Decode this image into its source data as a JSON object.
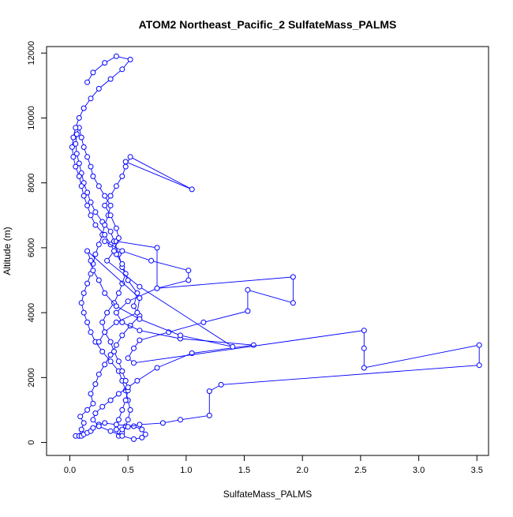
{
  "chart_data": {
    "type": "line",
    "title": "ATOM2 Northeast_Pacific_2 SulfateMass_PALMS",
    "xlabel": "SulfateMass_PALMS",
    "ylabel": "Altitude (m)",
    "xlim": [
      -0.2,
      3.6
    ],
    "ylim": [
      -400,
      12200
    ],
    "x_ticks": [
      {
        "value": 0.0,
        "label": "0.0"
      },
      {
        "value": 0.5,
        "label": "0.5"
      },
      {
        "value": 1.0,
        "label": "1.0"
      },
      {
        "value": 1.5,
        "label": "1.5"
      },
      {
        "value": 2.0,
        "label": "2.0"
      },
      {
        "value": 2.5,
        "label": "2.5"
      },
      {
        "value": 3.0,
        "label": "3.0"
      },
      {
        "value": 3.5,
        "label": "3.5"
      }
    ],
    "y_ticks": [
      {
        "value": 0,
        "label": "0"
      },
      {
        "value": 2000,
        "label": "2000"
      },
      {
        "value": 4000,
        "label": "4000"
      },
      {
        "value": 6000,
        "label": "6000"
      },
      {
        "value": 8000,
        "label": "8000"
      },
      {
        "value": 10000,
        "label": "10000"
      },
      {
        "value": 12000,
        "label": "12000"
      }
    ],
    "grid": false,
    "legend": "none",
    "color": "#0000ff",
    "series": [
      {
        "x": [
          0.08,
          0.1,
          0.12,
          0.09,
          0.15,
          0.2,
          0.18,
          0.22,
          0.25,
          0.3,
          0.35,
          0.4,
          0.45,
          0.52,
          0.6,
          0.55,
          0.58,
          0.5,
          0.45,
          0.42,
          0.38,
          0.35,
          0.28,
          0.22,
          0.18,
          0.15,
          0.12,
          0.1,
          0.08,
          0.06,
          0.05,
          0.06,
          0.08,
          0.1,
          0.12,
          0.15,
          0.18,
          0.2,
          0.25,
          0.3,
          0.35,
          0.33,
          0.3,
          0.28,
          0.25,
          0.22,
          0.2,
          0.18,
          0.15,
          0.12,
          0.1,
          0.12,
          0.15,
          0.18,
          0.22,
          0.28,
          0.35,
          0.42,
          0.45,
          0.48,
          0.5,
          0.52,
          0.5,
          0.48,
          0.45,
          0.42,
          0.4,
          0.42,
          0.45,
          0.48,
          0.5,
          0.48,
          0.45,
          0.42,
          0.38,
          0.35,
          0.3,
          0.28,
          0.32,
          0.38,
          0.42,
          0.45,
          0.48,
          0.45,
          0.4,
          0.35,
          0.3,
          0.22,
          0.18,
          0.15,
          0.12,
          0.1,
          0.08,
          0.05,
          0.03,
          0.02,
          0.03,
          0.05,
          0.08,
          0.12,
          0.18,
          0.25,
          0.35,
          0.45,
          0.52,
          0.4,
          0.3,
          0.2,
          0.15
        ],
        "y": [
          200,
          400,
          600,
          800,
          1000,
          1200,
          1500,
          1800,
          2100,
          2400,
          2700,
          3000,
          3300,
          3600,
          3900,
          4200,
          4600,
          5000,
          5400,
          5800,
          6200,
          6500,
          6800,
          7100,
          7400,
          7700,
          8000,
          8300,
          8600,
          8900,
          9200,
          9500,
          9700,
          9400,
          9100,
          8800,
          8500,
          8200,
          7900,
          7600,
          7300,
          7000,
          6700,
          6400,
          6100,
          5800,
          5500,
          5200,
          4900,
          4600,
          4300,
          4000,
          3700,
          3400,
          3100,
          2800,
          2500,
          2200,
          1900,
          1600,
          1300,
          1000,
          700,
          500,
          300,
          200,
          400,
          700,
          1000,
          1300,
          1600,
          1900,
          2200,
          2500,
          2800,
          3100,
          3400,
          3700,
          4000,
          4300,
          4600,
          4900,
          5200,
          5500,
          5800,
          6100,
          6400,
          6700,
          7000,
          7300,
          7600,
          7900,
          8200,
          8500,
          8800,
          9100,
          9400,
          9700,
          10000,
          10300,
          10600,
          10900,
          11200,
          11500,
          11800,
          11900,
          11700,
          11400,
          11100
        ]
      },
      {
        "x": [
          0.05,
          0.08,
          0.1,
          0.12,
          0.15,
          0.18,
          0.2,
          0.25,
          0.3,
          0.4,
          0.55,
          0.62,
          0.65,
          0.62,
          0.55,
          0.45,
          0.35,
          0.25,
          0.2,
          0.22,
          0.28,
          0.35,
          0.42,
          0.5,
          0.58,
          0.75,
          1.05,
          1.58,
          0.95,
          0.6,
          0.45,
          0.4,
          0.5,
          0.75,
          1.02,
          1.02,
          0.7,
          0.45,
          0.3
        ],
        "y": [
          200,
          200,
          200,
          250,
          300,
          350,
          450,
          550,
          600,
          550,
          500,
          400,
          250,
          150,
          100,
          200,
          350,
          500,
          700,
          900,
          1100,
          1300,
          1500,
          1700,
          1900,
          2300,
          2750,
          3000,
          3200,
          3450,
          3700,
          4000,
          4350,
          4750,
          5000,
          5300,
          5600,
          5900,
          6200
        ]
      },
      {
        "x": [
          0.4,
          0.75,
          0.75,
          1.92,
          1.92,
          1.53,
          1.53,
          1.15,
          0.85,
          0.6,
          0.55,
          0.5,
          0.55,
          2.53,
          2.53,
          2.53,
          3.52,
          3.52,
          1.3,
          1.2,
          1.2,
          0.95,
          0.8,
          0.6,
          0.5,
          0.45
        ],
        "y": [
          6200,
          6000,
          4750,
          5100,
          4300,
          4700,
          4050,
          3700,
          3400,
          3150,
          2900,
          2600,
          2450,
          3450,
          2900,
          2300,
          3000,
          2380,
          1780,
          1580,
          830,
          700,
          600,
          550,
          480,
          400
        ]
      },
      {
        "x": [
          0.48,
          1.05,
          0.52,
          0.48,
          0.45,
          0.4,
          0.35,
          0.3,
          0.35,
          0.4,
          0.42,
          0.38,
          0.32,
          0.6,
          1.4,
          0.95,
          0.6,
          0.4,
          0.3,
          0.25,
          0.2,
          0.18,
          0.15,
          0.6,
          0.58,
          0.4,
          0.3,
          0.25
        ],
        "y": [
          8650,
          7800,
          8800,
          8500,
          8200,
          7900,
          7600,
          7300,
          7000,
          6600,
          6300,
          5900,
          5600,
          4800,
          2950,
          3300,
          3800,
          4200,
          4600,
          5000,
          5300,
          5600,
          5900,
          4450,
          4000,
          3700,
          3400,
          3100
        ]
      }
    ]
  }
}
